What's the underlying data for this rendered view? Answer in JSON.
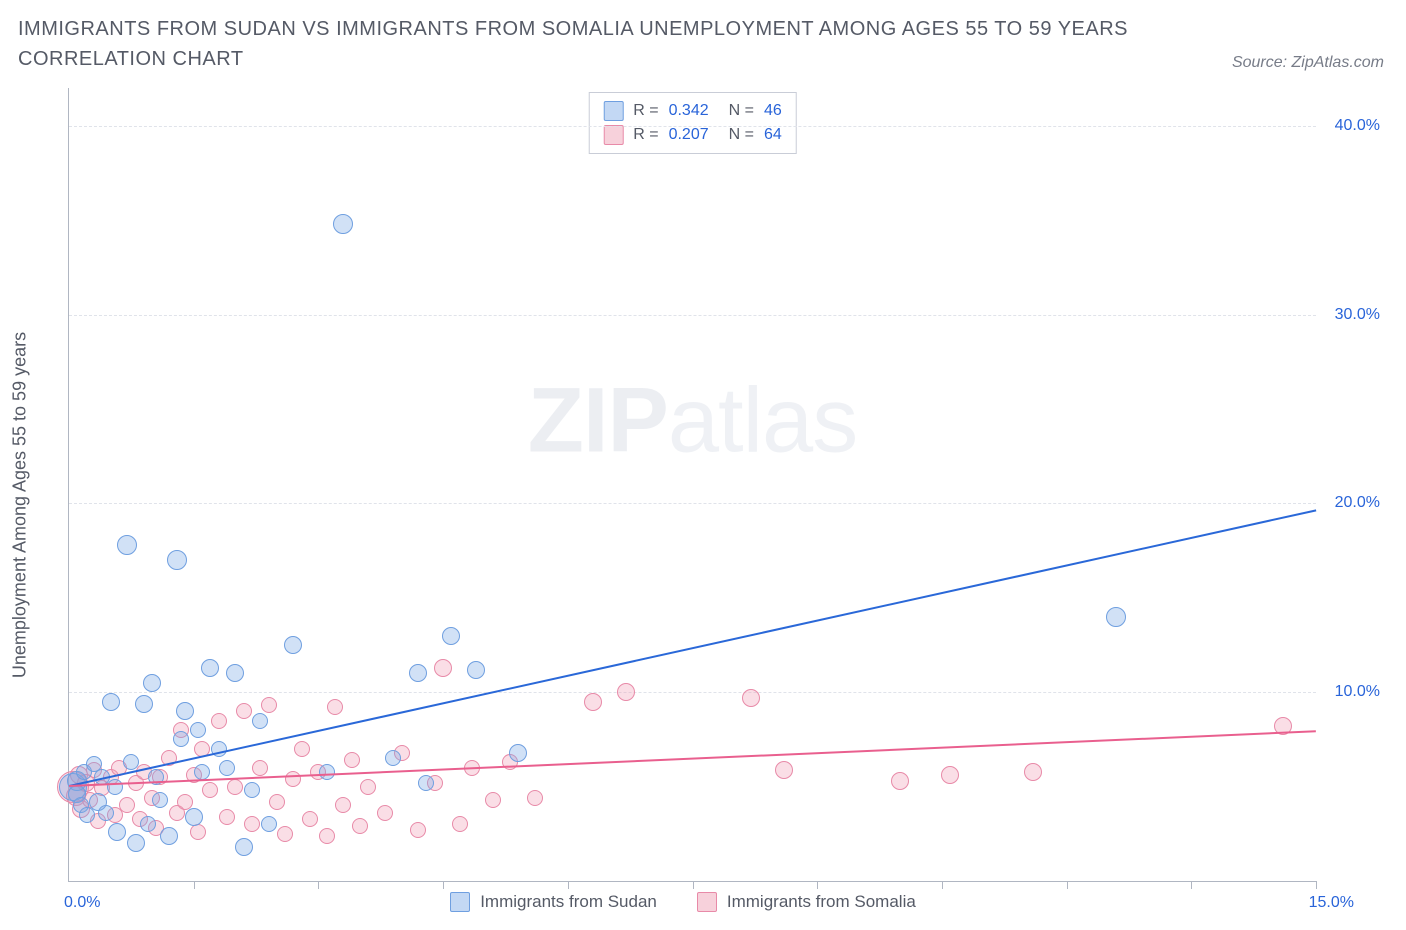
{
  "title": "IMMIGRANTS FROM SUDAN VS IMMIGRANTS FROM SOMALIA UNEMPLOYMENT AMONG AGES 55 TO 59 YEARS CORRELATION CHART",
  "source_label": "Source:",
  "source_name": "ZipAtlas.com",
  "ylabel": "Unemployment Among Ages 55 to 59 years",
  "watermark_bold": "ZIP",
  "watermark_thin": "atlas",
  "chart": {
    "type": "scatter",
    "xlim": [
      0,
      15
    ],
    "ylim": [
      0,
      42
    ],
    "x_ticks": [
      1.5,
      3.0,
      4.5,
      6.0,
      7.5,
      9.0,
      10.5,
      12.0,
      13.5,
      15.0
    ],
    "y_ticks": [
      10,
      20,
      30,
      40
    ],
    "y_tick_labels": [
      "10.0%",
      "20.0%",
      "30.0%",
      "40.0%"
    ],
    "x0_label": "0.0%",
    "xmax_label": "15.0%",
    "grid_color": "#e0e3ea",
    "axis_color": "#b0b6c2",
    "background_color": "#ffffff",
    "series": [
      {
        "name": "Immigrants from Sudan",
        "color_fill": "rgba(122,168,230,0.35)",
        "color_stroke": "#6f9fe0",
        "trend_color": "#2a68d8",
        "R": "0.342",
        "N": "46",
        "trend": {
          "x1": 0,
          "y1": 5.1,
          "x2": 15,
          "y2": 19.7
        },
        "points": [
          {
            "x": 0.05,
            "y": 5.0,
            "r": 14
          },
          {
            "x": 0.1,
            "y": 5.3,
            "r": 10
          },
          {
            "x": 0.1,
            "y": 4.6,
            "r": 9
          },
          {
            "x": 0.15,
            "y": 4.0,
            "r": 8
          },
          {
            "x": 0.18,
            "y": 5.8,
            "r": 8
          },
          {
            "x": 0.22,
            "y": 3.5,
            "r": 8
          },
          {
            "x": 0.3,
            "y": 6.2,
            "r": 8
          },
          {
            "x": 0.35,
            "y": 4.2,
            "r": 9
          },
          {
            "x": 0.4,
            "y": 5.5,
            "r": 8
          },
          {
            "x": 0.45,
            "y": 3.6,
            "r": 8
          },
          {
            "x": 0.5,
            "y": 9.5,
            "r": 9
          },
          {
            "x": 0.55,
            "y": 5.0,
            "r": 8
          },
          {
            "x": 0.58,
            "y": 2.6,
            "r": 9
          },
          {
            "x": 0.7,
            "y": 17.8,
            "r": 10
          },
          {
            "x": 0.75,
            "y": 6.3,
            "r": 8
          },
          {
            "x": 0.8,
            "y": 2.0,
            "r": 9
          },
          {
            "x": 0.9,
            "y": 9.4,
            "r": 9
          },
          {
            "x": 0.95,
            "y": 3.0,
            "r": 8
          },
          {
            "x": 1.0,
            "y": 10.5,
            "r": 9
          },
          {
            "x": 1.05,
            "y": 5.5,
            "r": 8
          },
          {
            "x": 1.1,
            "y": 4.3,
            "r": 8
          },
          {
            "x": 1.2,
            "y": 2.4,
            "r": 9
          },
          {
            "x": 1.3,
            "y": 17.0,
            "r": 10
          },
          {
            "x": 1.35,
            "y": 7.5,
            "r": 8
          },
          {
            "x": 1.4,
            "y": 9.0,
            "r": 9
          },
          {
            "x": 1.5,
            "y": 3.4,
            "r": 9
          },
          {
            "x": 1.55,
            "y": 8.0,
            "r": 8
          },
          {
            "x": 1.6,
            "y": 5.8,
            "r": 8
          },
          {
            "x": 1.7,
            "y": 11.3,
            "r": 9
          },
          {
            "x": 1.8,
            "y": 7.0,
            "r": 8
          },
          {
            "x": 1.9,
            "y": 6.0,
            "r": 8
          },
          {
            "x": 2.0,
            "y": 11.0,
            "r": 9
          },
          {
            "x": 2.1,
            "y": 1.8,
            "r": 9
          },
          {
            "x": 2.2,
            "y": 4.8,
            "r": 8
          },
          {
            "x": 2.3,
            "y": 8.5,
            "r": 8
          },
          {
            "x": 2.4,
            "y": 3.0,
            "r": 8
          },
          {
            "x": 2.7,
            "y": 12.5,
            "r": 9
          },
          {
            "x": 3.1,
            "y": 5.8,
            "r": 8
          },
          {
            "x": 3.3,
            "y": 34.8,
            "r": 10
          },
          {
            "x": 3.9,
            "y": 6.5,
            "r": 8
          },
          {
            "x": 4.2,
            "y": 11.0,
            "r": 9
          },
          {
            "x": 4.3,
            "y": 5.2,
            "r": 8
          },
          {
            "x": 4.6,
            "y": 13.0,
            "r": 9
          },
          {
            "x": 4.9,
            "y": 11.2,
            "r": 9
          },
          {
            "x": 5.4,
            "y": 6.8,
            "r": 9
          },
          {
            "x": 12.6,
            "y": 14.0,
            "r": 10
          }
        ]
      },
      {
        "name": "Immigrants from Somalia",
        "color_fill": "rgba(238,152,176,0.32)",
        "color_stroke": "#e88aa8",
        "trend_color": "#e95f8e",
        "R": "0.207",
        "N": "64",
        "trend": {
          "x1": 0,
          "y1": 5.1,
          "x2": 15,
          "y2": 8.0
        },
        "points": [
          {
            "x": 0.05,
            "y": 5.0,
            "r": 16
          },
          {
            "x": 0.08,
            "y": 4.5,
            "r": 10
          },
          {
            "x": 0.12,
            "y": 5.6,
            "r": 9
          },
          {
            "x": 0.15,
            "y": 3.8,
            "r": 9
          },
          {
            "x": 0.2,
            "y": 5.2,
            "r": 9
          },
          {
            "x": 0.25,
            "y": 4.3,
            "r": 8
          },
          {
            "x": 0.3,
            "y": 5.9,
            "r": 8
          },
          {
            "x": 0.35,
            "y": 3.2,
            "r": 8
          },
          {
            "x": 0.4,
            "y": 4.9,
            "r": 8
          },
          {
            "x": 0.5,
            "y": 5.5,
            "r": 8
          },
          {
            "x": 0.55,
            "y": 3.5,
            "r": 8
          },
          {
            "x": 0.6,
            "y": 6.0,
            "r": 8
          },
          {
            "x": 0.7,
            "y": 4.0,
            "r": 8
          },
          {
            "x": 0.8,
            "y": 5.2,
            "r": 8
          },
          {
            "x": 0.85,
            "y": 3.3,
            "r": 8
          },
          {
            "x": 0.9,
            "y": 5.8,
            "r": 8
          },
          {
            "x": 1.0,
            "y": 4.4,
            "r": 8
          },
          {
            "x": 1.05,
            "y": 2.8,
            "r": 8
          },
          {
            "x": 1.1,
            "y": 5.5,
            "r": 8
          },
          {
            "x": 1.2,
            "y": 6.5,
            "r": 8
          },
          {
            "x": 1.3,
            "y": 3.6,
            "r": 8
          },
          {
            "x": 1.35,
            "y": 8.0,
            "r": 8
          },
          {
            "x": 1.4,
            "y": 4.2,
            "r": 8
          },
          {
            "x": 1.5,
            "y": 5.6,
            "r": 8
          },
          {
            "x": 1.55,
            "y": 2.6,
            "r": 8
          },
          {
            "x": 1.6,
            "y": 7.0,
            "r": 8
          },
          {
            "x": 1.7,
            "y": 4.8,
            "r": 8
          },
          {
            "x": 1.8,
            "y": 8.5,
            "r": 8
          },
          {
            "x": 1.9,
            "y": 3.4,
            "r": 8
          },
          {
            "x": 2.0,
            "y": 5.0,
            "r": 8
          },
          {
            "x": 2.1,
            "y": 9.0,
            "r": 8
          },
          {
            "x": 2.2,
            "y": 3.0,
            "r": 8
          },
          {
            "x": 2.3,
            "y": 6.0,
            "r": 8
          },
          {
            "x": 2.4,
            "y": 9.3,
            "r": 8
          },
          {
            "x": 2.5,
            "y": 4.2,
            "r": 8
          },
          {
            "x": 2.6,
            "y": 2.5,
            "r": 8
          },
          {
            "x": 2.7,
            "y": 5.4,
            "r": 8
          },
          {
            "x": 2.8,
            "y": 7.0,
            "r": 8
          },
          {
            "x": 2.9,
            "y": 3.3,
            "r": 8
          },
          {
            "x": 3.0,
            "y": 5.8,
            "r": 8
          },
          {
            "x": 3.1,
            "y": 2.4,
            "r": 8
          },
          {
            "x": 3.2,
            "y": 9.2,
            "r": 8
          },
          {
            "x": 3.3,
            "y": 4.0,
            "r": 8
          },
          {
            "x": 3.4,
            "y": 6.4,
            "r": 8
          },
          {
            "x": 3.5,
            "y": 2.9,
            "r": 8
          },
          {
            "x": 3.6,
            "y": 5.0,
            "r": 8
          },
          {
            "x": 3.8,
            "y": 3.6,
            "r": 8
          },
          {
            "x": 4.0,
            "y": 6.8,
            "r": 8
          },
          {
            "x": 4.2,
            "y": 2.7,
            "r": 8
          },
          {
            "x": 4.4,
            "y": 5.2,
            "r": 8
          },
          {
            "x": 4.5,
            "y": 11.3,
            "r": 9
          },
          {
            "x": 4.7,
            "y": 3.0,
            "r": 8
          },
          {
            "x": 4.85,
            "y": 6.0,
            "r": 8
          },
          {
            "x": 5.1,
            "y": 4.3,
            "r": 8
          },
          {
            "x": 5.3,
            "y": 6.3,
            "r": 8
          },
          {
            "x": 5.6,
            "y": 4.4,
            "r": 8
          },
          {
            "x": 6.3,
            "y": 9.5,
            "r": 9
          },
          {
            "x": 6.7,
            "y": 10.0,
            "r": 9
          },
          {
            "x": 8.2,
            "y": 9.7,
            "r": 9
          },
          {
            "x": 8.6,
            "y": 5.9,
            "r": 9
          },
          {
            "x": 10.0,
            "y": 5.3,
            "r": 9
          },
          {
            "x": 10.6,
            "y": 5.6,
            "r": 9
          },
          {
            "x": 11.6,
            "y": 5.8,
            "r": 9
          },
          {
            "x": 14.6,
            "y": 8.2,
            "r": 9
          }
        ]
      }
    ],
    "bottom_legend": [
      {
        "swatch": "blue",
        "label": "Immigrants from Sudan"
      },
      {
        "swatch": "pink",
        "label": "Immigrants from Somalia"
      }
    ]
  }
}
